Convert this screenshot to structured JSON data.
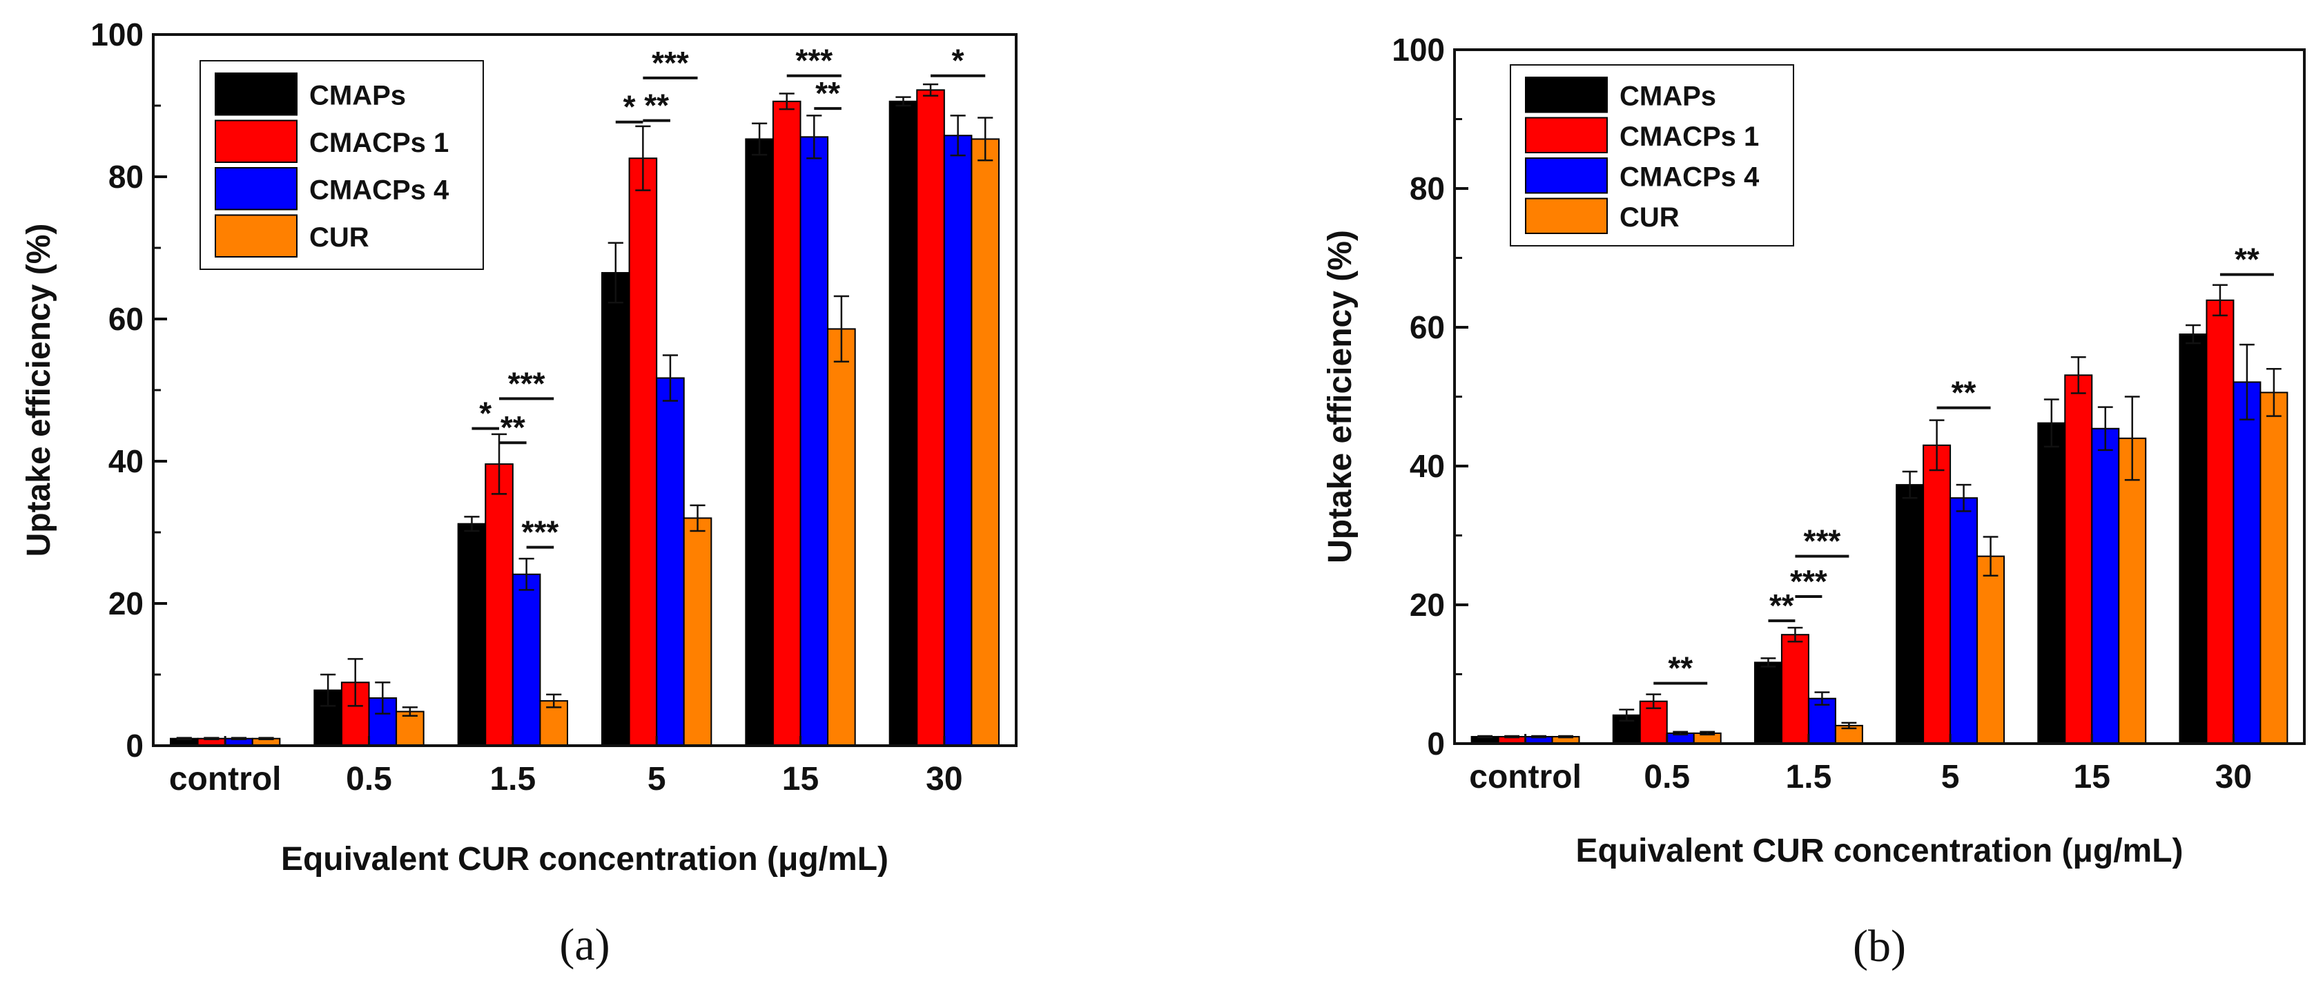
{
  "chart_data": [
    {
      "type": "bar",
      "panel_label": "(a)",
      "xlabel": "Equivalent CUR concentration (μg/mL)",
      "ylabel": "Uptake efficiency (%)",
      "ylim": [
        0,
        100
      ],
      "yticks": [
        "0",
        "20",
        "40",
        "60",
        "80",
        "100"
      ],
      "categories": [
        "control",
        "0.5",
        "1.5",
        "5",
        "15",
        "30"
      ],
      "legend_position": "top-left",
      "series": [
        {
          "name": "CMAPs",
          "color": "#000000",
          "values": [
            1.0,
            7.8,
            31.2,
            66.5,
            85.3,
            90.6
          ],
          "errors": [
            0.1,
            2.2,
            1.0,
            4.2,
            2.2,
            0.6
          ]
        },
        {
          "name": "CMACPs 1",
          "color": "#ff0000",
          "values": [
            1.0,
            8.9,
            39.6,
            82.6,
            90.6,
            92.2
          ],
          "errors": [
            0.1,
            3.3,
            4.2,
            4.5,
            1.1,
            0.8
          ]
        },
        {
          "name": "CMACPs 4",
          "color": "#0000ff",
          "values": [
            1.0,
            6.7,
            24.1,
            51.7,
            85.6,
            85.8
          ],
          "errors": [
            0.1,
            2.2,
            2.2,
            3.2,
            3.0,
            2.8
          ]
        },
        {
          "name": "CUR",
          "color": "#ff8000",
          "values": [
            1.0,
            4.8,
            6.3,
            32.0,
            58.6,
            85.3
          ],
          "errors": [
            0.1,
            0.6,
            0.9,
            1.8,
            4.6,
            3.0
          ]
        }
      ],
      "significance": [
        {
          "category": "1.5",
          "from": 0,
          "to": 1,
          "label": "*",
          "y": 44.6
        },
        {
          "category": "1.5",
          "from": 1,
          "to": 2,
          "label": "**",
          "y": 42.6
        },
        {
          "category": "1.5",
          "from": 1,
          "to": 3,
          "label": "***",
          "y": 48.8
        },
        {
          "category": "1.5",
          "from": 2,
          "to": 3,
          "label": "***",
          "y": 27.9
        },
        {
          "category": "5",
          "from": 0,
          "to": 1,
          "label": "*",
          "y": 87.7
        },
        {
          "category": "5",
          "from": 1,
          "to": 2,
          "label": "**",
          "y": 87.9
        },
        {
          "category": "5",
          "from": 1,
          "to": 3,
          "label": "***",
          "y": 93.9
        },
        {
          "category": "15",
          "from": 1,
          "to": 3,
          "label": "***",
          "y": 94.2
        },
        {
          "category": "15",
          "from": 2,
          "to": 3,
          "label": "**",
          "y": 89.6
        },
        {
          "category": "30",
          "from": 1,
          "to": 3,
          "label": "*",
          "y": 94.2
        }
      ]
    },
    {
      "type": "bar",
      "panel_label": "(b)",
      "xlabel": "Equivalent CUR concentration (μg/mL)",
      "ylabel": "Uptake efficiency (%)",
      "ylim": [
        0,
        100
      ],
      "yticks": [
        "0",
        "20",
        "40",
        "60",
        "80",
        "100"
      ],
      "categories": [
        "control",
        "0.5",
        "1.5",
        "5",
        "15",
        "30"
      ],
      "legend_position": "top-left",
      "series": [
        {
          "name": "CMAPs",
          "color": "#000000",
          "values": [
            1.0,
            4.1,
            11.7,
            37.3,
            46.2,
            59.0
          ],
          "errors": [
            0.1,
            0.8,
            0.6,
            1.9,
            3.4,
            1.3
          ]
        },
        {
          "name": "CMACPs 1",
          "color": "#ff0000",
          "values": [
            1.0,
            6.1,
            15.7,
            43.0,
            53.1,
            63.9
          ],
          "errors": [
            0.1,
            1.0,
            1.0,
            3.6,
            2.6,
            2.2
          ]
        },
        {
          "name": "CMACPs 4",
          "color": "#0000ff",
          "values": [
            1.0,
            1.5,
            6.5,
            35.4,
            45.4,
            52.1
          ],
          "errors": [
            0.1,
            0.2,
            0.9,
            1.9,
            3.1,
            5.4
          ]
        },
        {
          "name": "CUR",
          "color": "#ff8000",
          "values": [
            1.0,
            1.5,
            2.6,
            27.0,
            44.0,
            50.6
          ],
          "errors": [
            0.1,
            0.2,
            0.4,
            2.8,
            6.0,
            3.4
          ]
        }
      ],
      "significance": [
        {
          "category": "0.5",
          "from": 1,
          "to": 3,
          "label": "**",
          "y": 8.7
        },
        {
          "category": "1.5",
          "from": 0,
          "to": 1,
          "label": "**",
          "y": 17.7
        },
        {
          "category": "1.5",
          "from": 1,
          "to": 2,
          "label": "***",
          "y": 21.2
        },
        {
          "category": "1.5",
          "from": 1,
          "to": 3,
          "label": "***",
          "y": 27.0
        },
        {
          "category": "5",
          "from": 1,
          "to": 3,
          "label": "**",
          "y": 48.4
        },
        {
          "category": "30",
          "from": 1,
          "to": 3,
          "label": "**",
          "y": 67.6
        }
      ]
    }
  ]
}
